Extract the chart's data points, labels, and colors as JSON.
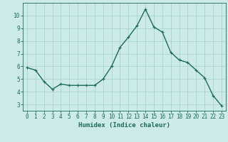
{
  "x": [
    0,
    1,
    2,
    3,
    4,
    5,
    6,
    7,
    8,
    9,
    10,
    11,
    12,
    13,
    14,
    15,
    16,
    17,
    18,
    19,
    20,
    21,
    22,
    23
  ],
  "y": [
    5.9,
    5.7,
    4.8,
    4.2,
    4.6,
    4.5,
    4.5,
    4.5,
    4.5,
    5.0,
    6.0,
    7.5,
    8.3,
    9.2,
    10.5,
    9.1,
    8.7,
    7.1,
    6.5,
    6.3,
    5.7,
    5.1,
    3.7,
    2.9
  ],
  "line_color": "#1a6b5a",
  "marker": "+",
  "marker_size": 3,
  "bg_color": "#cceae7",
  "grid_color": "#aad4d0",
  "xlabel": "Humidex (Indice chaleur)",
  "xlim": [
    -0.5,
    23.5
  ],
  "ylim": [
    2.5,
    11.0
  ],
  "yticks": [
    3,
    4,
    5,
    6,
    7,
    8,
    9,
    10
  ],
  "xticks": [
    0,
    1,
    2,
    3,
    4,
    5,
    6,
    7,
    8,
    9,
    10,
    11,
    12,
    13,
    14,
    15,
    16,
    17,
    18,
    19,
    20,
    21,
    22,
    23
  ],
  "tick_color": "#1a6b5a",
  "label_fontsize": 6.5,
  "tick_fontsize": 5.5,
  "line_width": 1.0
}
